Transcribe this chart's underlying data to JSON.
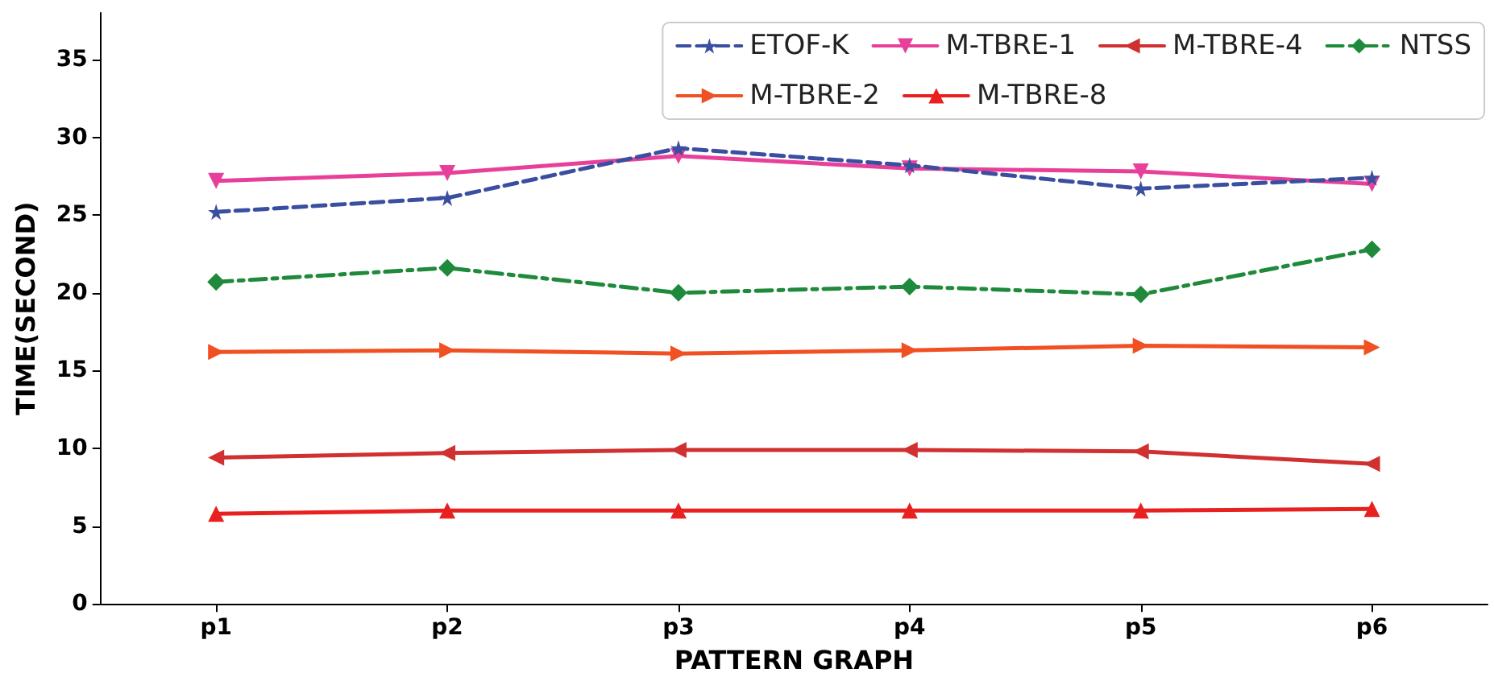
{
  "chart_data": {
    "type": "line",
    "xlabel": "PATTERN GRAPH",
    "ylabel": "TIME(SECOND)",
    "categories": [
      "p1",
      "p2",
      "p3",
      "p4",
      "p5",
      "p6"
    ],
    "series": [
      {
        "name": "ETOF-K",
        "color": "#3b4fa0",
        "marker": "star",
        "line_style": "dashed",
        "values": [
          25.2,
          26.1,
          29.3,
          28.2,
          26.7,
          27.4
        ]
      },
      {
        "name": "NTSS",
        "color": "#1f8a3c",
        "marker": "diamond",
        "line_style": "dashdot",
        "values": [
          20.7,
          21.6,
          20.0,
          20.4,
          19.9,
          22.8
        ]
      },
      {
        "name": "M-TBRE-1",
        "color": "#e8409a",
        "marker": "triangle-down",
        "line_style": "solid",
        "values": [
          27.2,
          27.7,
          28.8,
          28.0,
          27.8,
          27.0
        ]
      },
      {
        "name": "M-TBRE-2",
        "color": "#f05022",
        "marker": "triangle-right",
        "line_style": "solid",
        "values": [
          16.2,
          16.3,
          16.1,
          16.3,
          16.6,
          16.5
        ]
      },
      {
        "name": "M-TBRE-4",
        "color": "#d03030",
        "marker": "triangle-left",
        "line_style": "solid",
        "values": [
          9.4,
          9.7,
          9.9,
          9.9,
          9.8,
          9.0
        ]
      },
      {
        "name": "M-TBRE-8",
        "color": "#e82020",
        "marker": "triangle",
        "line_style": "solid",
        "values": [
          5.8,
          6.0,
          6.0,
          6.0,
          6.0,
          6.1
        ]
      }
    ],
    "ylim": [
      0,
      38
    ],
    "yticks": [
      0,
      5,
      10,
      15,
      20,
      25,
      30,
      35
    ],
    "grid": false,
    "legend": "top right"
  }
}
